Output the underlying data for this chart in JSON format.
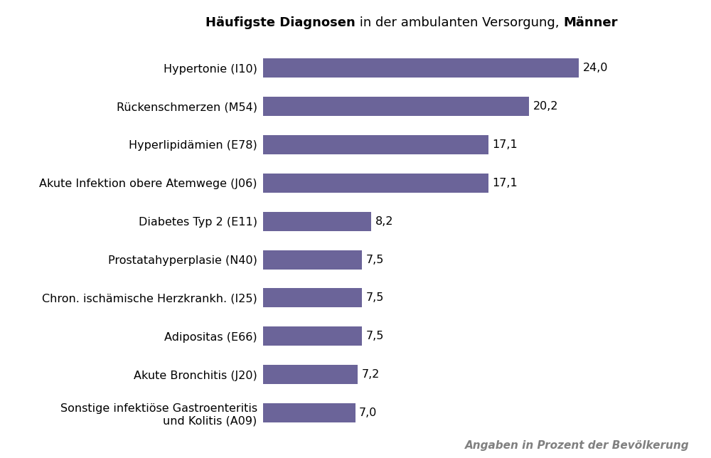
{
  "title_part1": "Häufigste Diagnosen",
  "title_part2": " in der ambulanten Versorgung, ",
  "title_part3": "Männer",
  "categories": [
    "Sonstige infektiöse Gastroenteritis\nund Kolitis (A09)",
    "Akute Bronchitis (J20)",
    "Adipositas (E66)",
    "Chron. ischämische Herzkrankh. (I25)",
    "Prostatahyperplasie (N40)",
    "Diabetes Typ 2 (E11)",
    "Akute Infektion obere Atemwege (J06)",
    "Hyperlipidämien (E78)",
    "Rückenschmerzen (M54)",
    "Hypertonie (I10)"
  ],
  "values": [
    7.0,
    7.2,
    7.5,
    7.5,
    7.5,
    8.2,
    17.1,
    17.1,
    20.2,
    24.0
  ],
  "bar_color": "#6b6499",
  "value_labels": [
    "7,0",
    "7,2",
    "7,5",
    "7,5",
    "7,5",
    "8,2",
    "17,1",
    "17,1",
    "20,2",
    "24,0"
  ],
  "footnote": "Angaben in Prozent der Bevölkerung",
  "footnote_color": "#808080",
  "xlim": [
    0,
    27
  ],
  "background_color": "#ffffff",
  "title_fontsize": 13,
  "label_fontsize": 11.5,
  "value_fontsize": 11.5,
  "footnote_fontsize": 11,
  "bar_height": 0.5
}
